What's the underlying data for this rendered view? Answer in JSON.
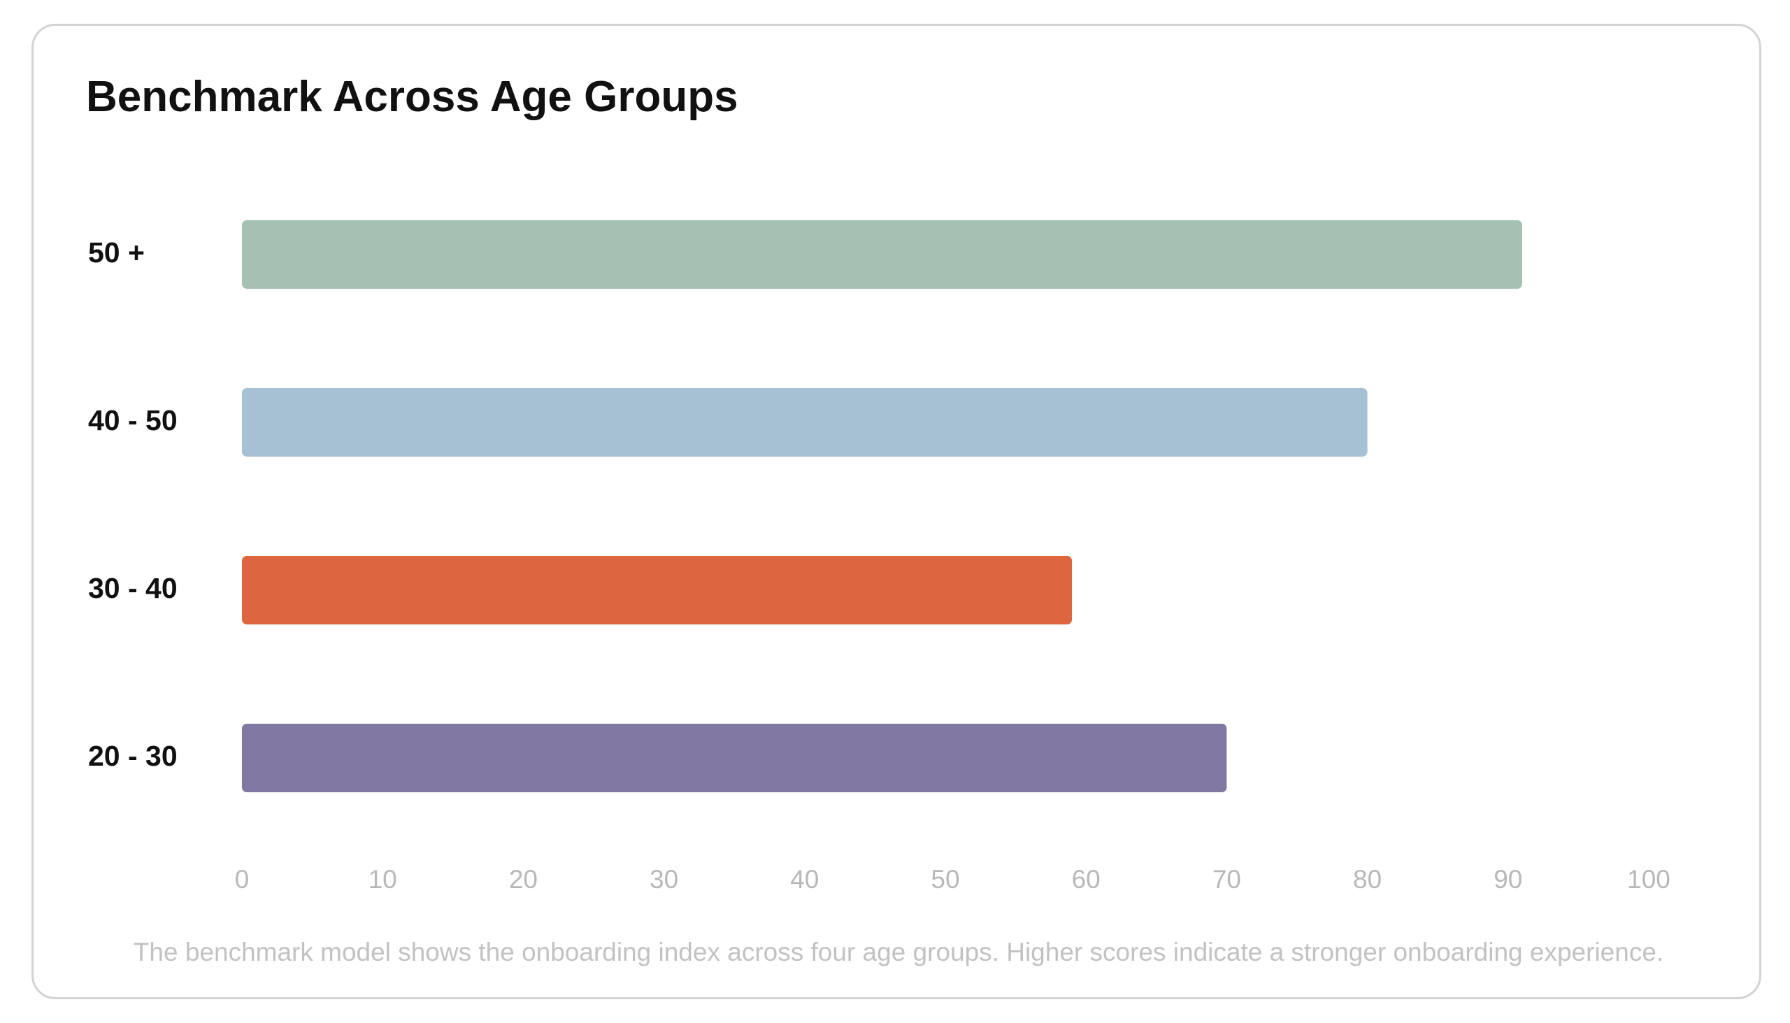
{
  "chart_data": {
    "type": "bar",
    "orientation": "horizontal",
    "title": "Benchmark Across Age Groups",
    "categories": [
      "50 +",
      "40 - 50",
      "30 - 40",
      "20 - 30"
    ],
    "values": [
      91,
      80,
      59,
      70
    ],
    "colors": [
      "#a5c1b1",
      "#a6c0d4",
      "#dd6640",
      "#8178a3"
    ],
    "xlim": [
      0,
      100
    ],
    "x_ticks": [
      "0",
      "10",
      "20",
      "30",
      "40",
      "50",
      "60",
      "70",
      "80",
      "90",
      "100"
    ],
    "xlabel": "",
    "ylabel": "",
    "grid": false,
    "legend": "none"
  },
  "caption": "The benchmark model shows the onboarding index across four age groups. Higher scores indicate a stronger onboarding experience."
}
